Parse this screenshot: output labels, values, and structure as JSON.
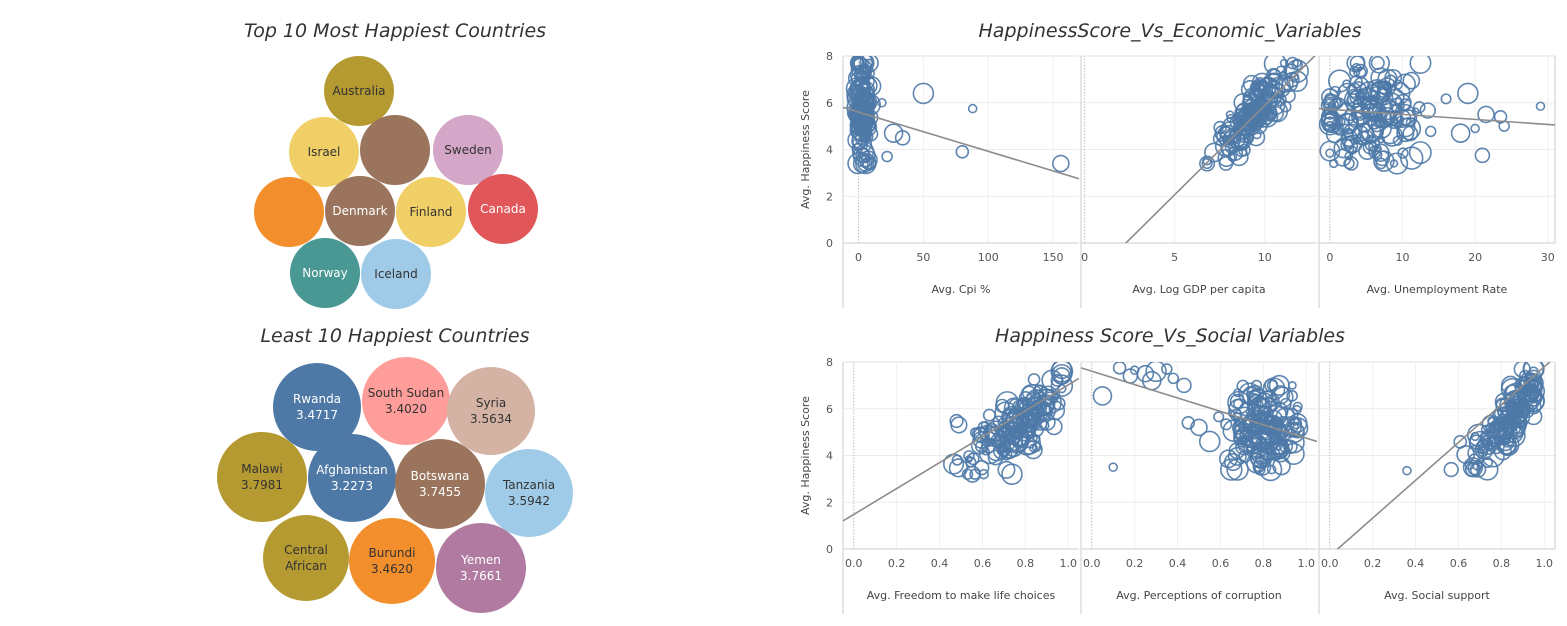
{
  "titles": {
    "top_bubbles": "Top 10 Most Happiest Countries",
    "bottom_bubbles": "Least 10 Happiest Countries",
    "economic": "HappinessScore_Vs_Economic_Variables",
    "social": "Happiness Score_Vs_Social Variables"
  },
  "chart_data": [
    {
      "type": "bubble",
      "title": "Top 10 Most Happiest Countries",
      "bubbles": [
        {
          "label": "Australia",
          "value": "",
          "color": "#b49a30"
        },
        {
          "label": "Israel",
          "value": "",
          "color": "#f0cf66"
        },
        {
          "label": "",
          "value": "",
          "color": "#9a745c"
        },
        {
          "label": "Sweden",
          "value": "",
          "color": "#d4a6c8"
        },
        {
          "label": "",
          "value": "",
          "color": "#f28e2b"
        },
        {
          "label": "Denmark",
          "value": "",
          "color": "#9a745c"
        },
        {
          "label": "Finland",
          "value": "",
          "color": "#f0cf66"
        },
        {
          "label": "Canada",
          "value": "",
          "color": "#e15759"
        },
        {
          "label": "Norway",
          "value": "",
          "color": "#499894"
        },
        {
          "label": "Iceland",
          "value": "",
          "color": "#a0cbe8"
        }
      ]
    },
    {
      "type": "bubble",
      "title": "Least 10 Happiest Countries",
      "bubbles": [
        {
          "label": "Rwanda",
          "value": "3.4717",
          "color": "#4e79a7"
        },
        {
          "label": "South Sudan",
          "value": "3.4020",
          "color": "#ff9d9a"
        },
        {
          "label": "Syria",
          "value": "3.5634",
          "color": "#d4b3a4"
        },
        {
          "label": "Malawi",
          "value": "3.7981",
          "color": "#b49a30"
        },
        {
          "label": "Afghanistan",
          "value": "3.2273",
          "color": "#4e79a7"
        },
        {
          "label": "Botswana",
          "value": "3.7455",
          "color": "#9a745c"
        },
        {
          "label": "Tanzania",
          "value": "3.5942",
          "color": "#a0cbe8"
        },
        {
          "label": "Central\nAfrican",
          "value": "",
          "color": "#b49a30"
        },
        {
          "label": "Burundi",
          "value": "3.4620",
          "color": "#f28e2b"
        },
        {
          "label": "Yemen",
          "value": "3.7661",
          "color": "#b07aa1"
        }
      ]
    },
    {
      "type": "scatter",
      "title": "HappinessScore_Vs_Economic_Variables",
      "ylabel": "Avg. Happiness Score",
      "ylim": [
        0,
        8
      ],
      "yticks": [
        "0",
        "2",
        "4",
        "6",
        "8"
      ],
      "panels": [
        {
          "xlabel": "Avg. Cpi %",
          "xlim": [
            -12,
            170
          ],
          "xticks": [
            "0",
            "50",
            "100",
            "150"
          ],
          "xtick_values": [
            0,
            50,
            100,
            150
          ],
          "trend": [
            [
              -12,
              5.8
            ],
            [
              170,
              2.75
            ]
          ],
          "cluster": {
            "cx": 3,
            "sx": 3,
            "xmin": -1,
            "xmax": 14,
            "cy": 5.7,
            "sy": 1.1,
            "ymin": 3.4,
            "ymax": 7.7,
            "n": 150
          },
          "extra": [
            [
              88,
              5.75
            ],
            [
              80,
              3.9
            ],
            [
              156,
              3.4
            ],
            [
              50,
              6.4
            ],
            [
              22,
              3.7
            ],
            [
              34,
              4.5
            ],
            [
              27,
              4.7
            ],
            [
              18,
              6.0
            ]
          ]
        },
        {
          "xlabel": "Avg. Log GDP per capita",
          "xlim": [
            -0.2,
            12.9
          ],
          "xticks": [
            "0",
            "5",
            "10"
          ],
          "xtick_values": [
            0,
            5,
            10
          ],
          "trend": [
            [
              1.9,
              -0.3
            ],
            [
              12.9,
              8.1
            ]
          ],
          "cluster": {
            "cx": 9.6,
            "sx": 1.1,
            "xmin": 6.8,
            "xmax": 11.8,
            "slope": 0.8,
            "intercept": -2.0,
            "noise": 0.55,
            "ymin": 3.4,
            "ymax": 7.7,
            "n": 170
          },
          "extra": []
        },
        {
          "xlabel": "Avg. Unemployment Rate",
          "xlim": [
            -1.5,
            31
          ],
          "xticks": [
            "0",
            "10",
            "20",
            "30"
          ],
          "xtick_values": [
            0,
            10,
            20,
            30
          ],
          "trend": [
            [
              -1.5,
              5.75
            ],
            [
              31,
              5.05
            ]
          ],
          "cluster": {
            "cx": 6,
            "sx": 3.5,
            "xmin": 0,
            "xmax": 16,
            "cy": 5.5,
            "sy": 1.1,
            "ymin": 3.4,
            "ymax": 7.7,
            "n": 170
          },
          "extra": [
            [
              29,
              5.85
            ],
            [
              23.5,
              5.4
            ],
            [
              21.5,
              5.5
            ],
            [
              19,
              6.4
            ],
            [
              24,
              5.0
            ],
            [
              21,
              3.75
            ],
            [
              18,
              4.7
            ],
            [
              20,
              4.9
            ]
          ]
        }
      ]
    },
    {
      "type": "scatter",
      "title": "Happiness Score_Vs_Social Variables",
      "ylabel": "Avg. Happiness Score",
      "ylim": [
        0,
        8
      ],
      "yticks": [
        "0",
        "2",
        "4",
        "6",
        "8"
      ],
      "panels": [
        {
          "xlabel": "Avg. Freedom to make life choices",
          "xlim": [
            -0.05,
            1.05
          ],
          "xticks": [
            "0.0",
            "0.2",
            "0.4",
            "0.6",
            "0.8",
            "1.0"
          ],
          "xtick_values": [
            0,
            0.2,
            0.4,
            0.6,
            0.8,
            1.0
          ],
          "trend": [
            [
              -0.05,
              1.2
            ],
            [
              1.05,
              7.3
            ]
          ],
          "cluster": {
            "cx": 0.76,
            "sx": 0.12,
            "xmin": 0.42,
            "xmax": 0.97,
            "slope": 6.0,
            "intercept": 0.85,
            "noise": 0.75,
            "ymin": 3.2,
            "ymax": 7.7,
            "n": 170
          },
          "extra": []
        },
        {
          "xlabel": "Avg. Perceptions of corruption",
          "xlim": [
            -0.05,
            1.05
          ],
          "xticks": [
            "0.0",
            "0.2",
            "0.4",
            "0.6",
            "0.8",
            "1.0"
          ],
          "xtick_values": [
            0,
            0.2,
            0.4,
            0.6,
            0.8,
            1.0
          ],
          "trend": [
            [
              -0.05,
              7.75
            ],
            [
              1.05,
              4.6
            ]
          ],
          "cluster": {
            "cx": 0.8,
            "sx": 0.08,
            "xmin": 0.55,
            "xmax": 0.96,
            "cy": 5.1,
            "sy": 0.9,
            "ymin": 3.4,
            "ymax": 7.0,
            "n": 170
          },
          "extra": [
            [
              0.2,
              7.65
            ],
            [
              0.13,
              7.75
            ],
            [
              0.25,
              7.5
            ],
            [
              0.3,
              7.6
            ],
            [
              0.38,
              7.3
            ],
            [
              0.43,
              7.0
            ],
            [
              0.05,
              6.55
            ],
            [
              0.1,
              3.5
            ],
            [
              0.45,
              5.4
            ],
            [
              0.5,
              5.2
            ],
            [
              0.55,
              4.6
            ],
            [
              0.35,
              7.7
            ],
            [
              0.18,
              7.4
            ],
            [
              0.28,
              7.2
            ]
          ]
        },
        {
          "xlabel": "Avg. Social support",
          "xlim": [
            -0.05,
            1.05
          ],
          "xticks": [
            "0.0",
            "0.2",
            "0.4",
            "0.6",
            "0.8",
            "1.0"
          ],
          "xtick_values": [
            0,
            0.2,
            0.4,
            0.6,
            0.8,
            1.0
          ],
          "trend": [
            [
              0.0,
              -0.3
            ],
            [
              1.05,
              8.2
            ]
          ],
          "cluster": {
            "cx": 0.84,
            "sx": 0.09,
            "xmin": 0.48,
            "xmax": 0.95,
            "slope": 10.0,
            "intercept": -2.7,
            "noise": 0.55,
            "ymin": 3.4,
            "ymax": 7.7,
            "n": 170
          },
          "extra": [
            [
              0.36,
              3.35
            ]
          ]
        }
      ]
    }
  ]
}
